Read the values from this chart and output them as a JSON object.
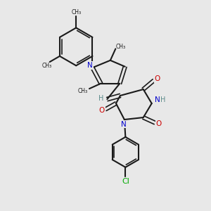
{
  "background_color": "#e8e8e8",
  "bond_color": "#1a1a1a",
  "N_color": "#0000cc",
  "O_color": "#cc0000",
  "Cl_color": "#00aa00",
  "H_color": "#5a8a8a",
  "figsize": [
    3.0,
    3.0
  ],
  "dpi": 100,
  "xlim": [
    0,
    10
  ],
  "ylim": [
    0,
    10
  ]
}
